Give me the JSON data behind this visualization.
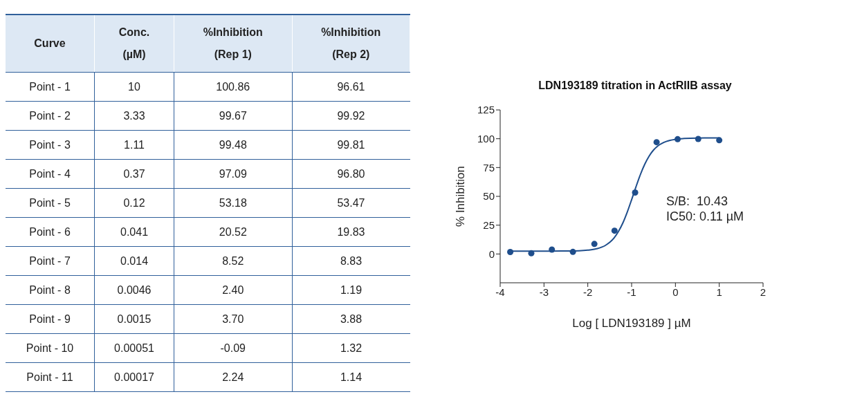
{
  "chart_data": [
    {
      "type": "other",
      "xlabel": "Curve",
      "categories": [
        "Point - 1",
        "Point - 2",
        "Point - 3",
        "Point - 4",
        "Point - 5",
        "Point - 6",
        "Point - 7",
        "Point - 8",
        "Point - 9",
        "Point - 10",
        "Point - 11"
      ],
      "series": [
        {
          "name": "Conc. (µM)",
          "values": [
            10,
            3.33,
            1.11,
            0.37,
            0.12,
            0.041,
            0.014,
            0.0046,
            0.0015,
            0.00051,
            0.00017
          ],
          "value_labels": [
            "10",
            "3.33",
            "1.11",
            "0.37",
            "0.12",
            "0.041",
            "0.014",
            "0.0046",
            "0.0015",
            "0.00051",
            "0.00017"
          ]
        },
        {
          "name": "%Inhibition (Rep 1)",
          "values": [
            100.86,
            99.67,
            99.48,
            97.09,
            53.18,
            20.52,
            8.52,
            2.4,
            3.7,
            -0.09,
            2.24
          ],
          "value_labels": [
            "100.86",
            "99.67",
            "99.48",
            "97.09",
            "53.18",
            "20.52",
            "8.52",
            "2.40",
            "3.70",
            "-0.09",
            "2.24"
          ]
        },
        {
          "name": "%Inhibition (Rep 2)",
          "values": [
            96.61,
            99.92,
            99.81,
            96.8,
            53.47,
            19.83,
            8.83,
            1.19,
            3.88,
            1.32,
            1.14
          ],
          "value_labels": [
            "96.61",
            "99.92",
            "99.81",
            "96.80",
            "53.47",
            "19.83",
            "8.83",
            "1.19",
            "3.88",
            "1.32",
            "1.14"
          ]
        }
      ]
    },
    {
      "type": "scatter",
      "title": "LDN193189 titration in ActRIIB assay",
      "xlabel": "Log [ LDN193189 ] µM",
      "ylabel": "% Inhibition",
      "xlim": [
        -4,
        2
      ],
      "xticks": [
        -4,
        -3,
        -2,
        -1,
        0,
        1,
        2
      ],
      "ylim": [
        -25,
        125
      ],
      "yticks": [
        0,
        25,
        50,
        75,
        100,
        125
      ],
      "grid": false,
      "legend": false,
      "annotations": [
        "S/B:  10.43",
        "IC50: 0.11 µM"
      ],
      "series": [
        {
          "type": "line",
          "color": "#1f4e8c",
          "marker": "none",
          "line_style": "solid",
          "x": [
            -3.8,
            -3.0,
            -2.6,
            -2.2,
            -2.0,
            -1.8,
            -1.6,
            -1.4,
            -1.3,
            -1.2,
            -1.1,
            -1.0,
            -0.9,
            -0.8,
            -0.7,
            -0.6,
            -0.5,
            -0.4,
            -0.2,
            0,
            0.2,
            0.5,
            1.0
          ],
          "values": [
            2.5,
            2.5,
            2.6,
            2.8,
            3.3,
            4.5,
            7.4,
            13.9,
            19.5,
            26.9,
            36.3,
            47.1,
            58.3,
            68.9,
            77.9,
            85.0,
            90.2,
            93.8,
            97.8,
            99.5,
            100.2,
            100.6,
            100.7
          ]
        },
        {
          "type": "scatter",
          "color": "#1f4e8c",
          "marker": "circle",
          "x": [
            1,
            0.52,
            0.05,
            -0.43,
            -0.92,
            -1.39,
            -1.85,
            -2.34,
            -2.82,
            -3.29,
            -3.77
          ],
          "values": [
            98.7,
            99.8,
            99.6,
            97.0,
            53.3,
            20.2,
            8.7,
            1.8,
            3.8,
            0.6,
            1.7
          ]
        }
      ]
    }
  ]
}
